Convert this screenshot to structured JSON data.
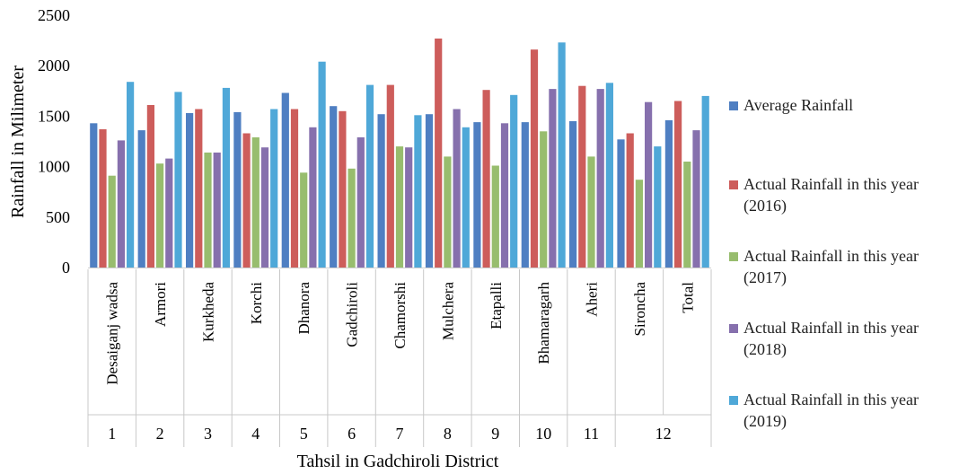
{
  "chart_data": {
    "type": "bar",
    "title": "",
    "xlabel": "Tahsil in Gadchiroli District",
    "ylabel": "Rainfall in Milimeter",
    "ylim": [
      0,
      2500
    ],
    "yticks": [
      "0",
      "500",
      "1000",
      "1500",
      "2000",
      "2500"
    ],
    "grid": false,
    "legend_position": "right",
    "categories": [
      "Desaiganj wadsa",
      "Armori",
      "Kurkheda",
      "Korchi",
      "Dhanora",
      "Gadchiroli",
      "Chamorshi",
      "Mulchera",
      "Etapalli",
      "Bhamaragarh",
      "Aheri",
      "Sironcha",
      "Total"
    ],
    "serial_numbers": [
      "1",
      "2",
      "3",
      "4",
      "5",
      "6",
      "7",
      "8",
      "9",
      "10",
      "11",
      "12",
      ""
    ],
    "series": [
      {
        "name": "Average Rainfall",
        "color": "#4f7fc2",
        "values": [
          1430,
          1360,
          1530,
          1540,
          1730,
          1600,
          1520,
          1520,
          1440,
          1440,
          1450,
          1270,
          1460
        ]
      },
      {
        "name": "Actual Rainfall in this year (2016)",
        "color": "#cd5d5b",
        "values": [
          1370,
          1610,
          1570,
          1330,
          1570,
          1550,
          1810,
          2270,
          1760,
          2160,
          1800,
          1330,
          1650
        ]
      },
      {
        "name": "Actual Rainfall in this year (2017)",
        "color": "#98bd6e",
        "values": [
          910,
          1030,
          1140,
          1290,
          940,
          980,
          1200,
          1100,
          1010,
          1350,
          1100,
          870,
          1050
        ]
      },
      {
        "name": "Actual Rainfall in this year (2018)",
        "color": "#8670ad",
        "values": [
          1260,
          1080,
          1140,
          1190,
          1390,
          1290,
          1190,
          1570,
          1430,
          1770,
          1770,
          1640,
          1360
        ]
      },
      {
        "name": "Actual Rainfall in this year (2019)",
        "color": "#4fa8d8",
        "values": [
          1840,
          1740,
          1780,
          1570,
          2040,
          1810,
          1510,
          1390,
          1710,
          2230,
          1830,
          1200,
          1700
        ]
      }
    ]
  }
}
